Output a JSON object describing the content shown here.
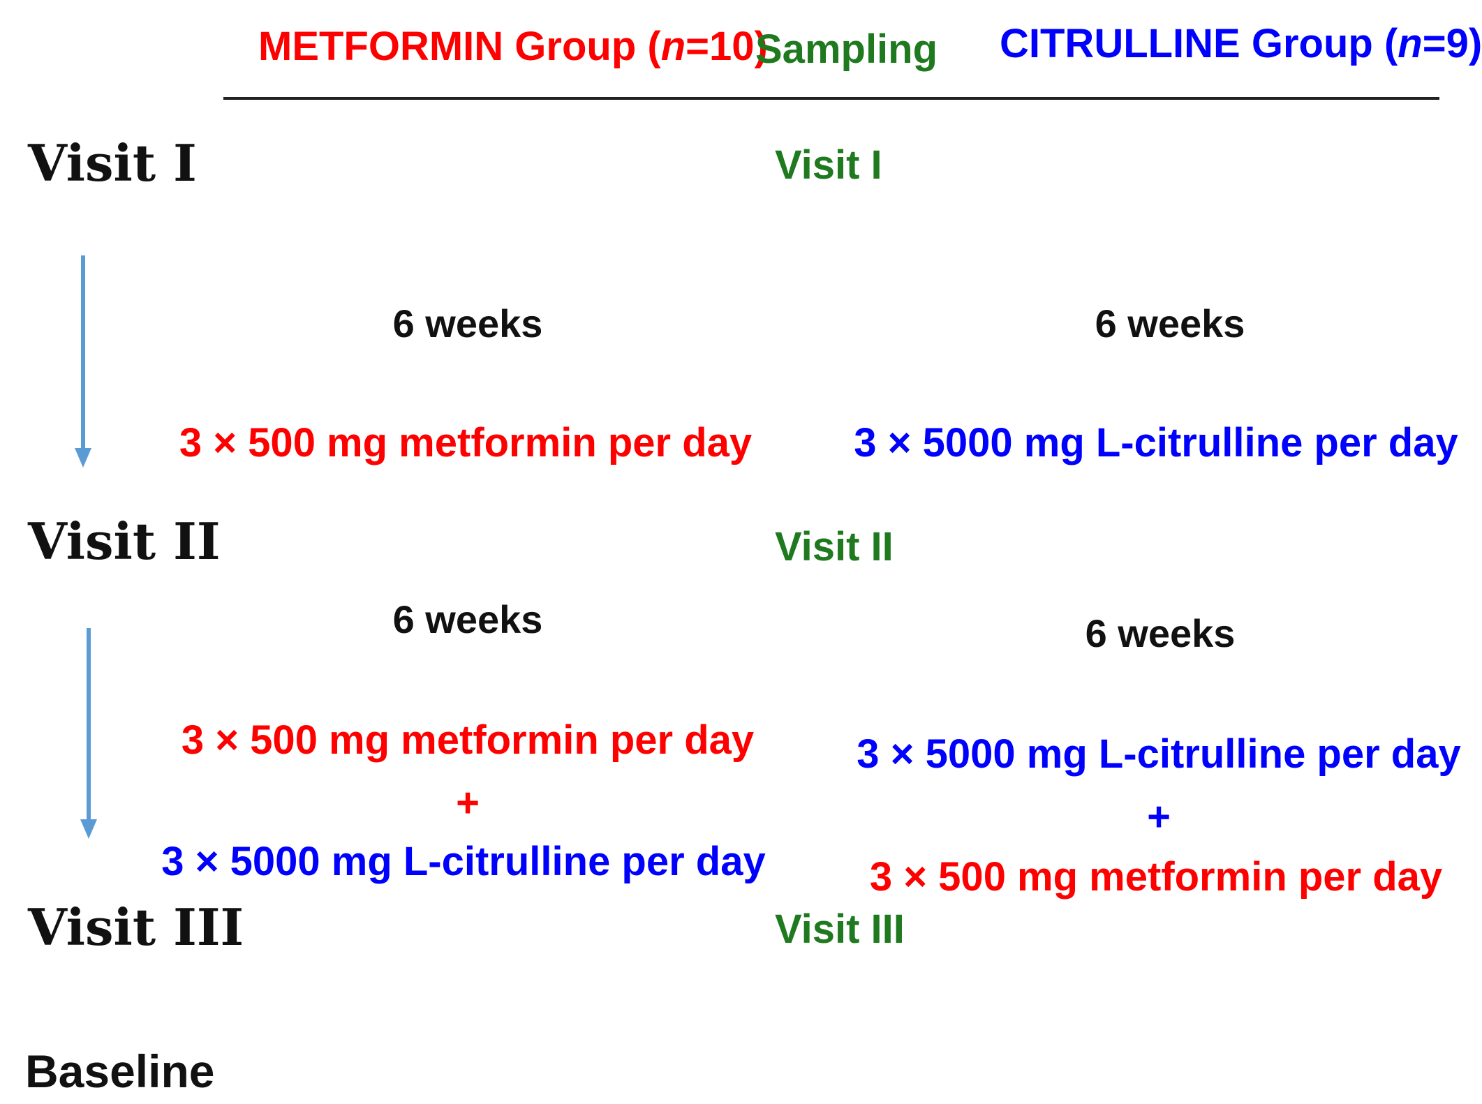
{
  "colors": {
    "metformin": "#ff0000",
    "citrulline": "#0000ff",
    "sampling": "#1f7a1f",
    "text": "#111111",
    "arrow": "#5b9bd5"
  },
  "header": {
    "metformin_label": "METFORMIN Group (",
    "metformin_n": "n",
    "metformin_count": "=10)",
    "sampling": "Sampling",
    "citrulline_label": "CITRULLINE Group (",
    "citrulline_n": "n",
    "citrulline_count": "=9)"
  },
  "visits": {
    "visit1": "Visit I",
    "visit2": "Visit II",
    "visit3": "Visit III",
    "baseline": "Baseline"
  },
  "sampling": {
    "visit1": "Visit I",
    "visit2": "Visit II",
    "visit3": "Visit III"
  },
  "metformin_group": {
    "period1_duration": "6 weeks",
    "period1_dose": "3 × 500 mg metformin per day",
    "period2_duration": "6 weeks",
    "period2_dose_1": "3 × 500 mg metformin per day",
    "period2_plus": "+",
    "period2_dose_2": "3 × 5000 mg L-citrulline per day"
  },
  "citrulline_group": {
    "period1_duration": "6 weeks",
    "period1_dose": "3 × 5000 mg L-citrulline per day",
    "period2_duration": "6 weeks",
    "period2_dose_1": "3 × 5000 mg L-citrulline per day",
    "period2_plus": "+",
    "period2_dose_2": "3 × 500 mg metformin per day"
  }
}
